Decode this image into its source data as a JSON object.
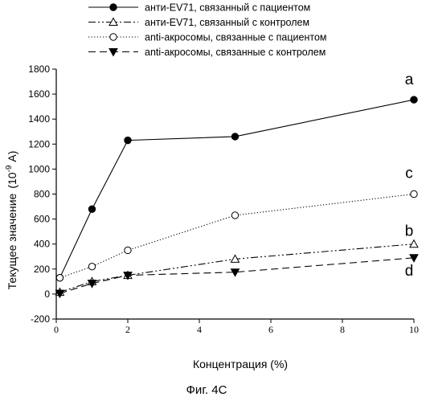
{
  "figure": {
    "caption": "Фиг. 4С"
  },
  "chart_data": {
    "type": "line",
    "xlabel": "Концентрация (%)",
    "ylabel": "Текущее значение",
    "ylabel_unit_prefix": "(10",
    "ylabel_unit_exp": "-9",
    "ylabel_unit_suffix": " А)",
    "xlim": [
      0,
      10
    ],
    "ylim": [
      -200,
      1800
    ],
    "x_ticks": [
      0,
      2,
      4,
      6,
      8,
      10
    ],
    "y_ticks": [
      -200,
      0,
      200,
      400,
      600,
      800,
      1000,
      1200,
      1400,
      1600,
      1800
    ],
    "grid": false,
    "legend_position": "top",
    "series": [
      {
        "name": "анти-EV71, связанный с пациентом",
        "label": "a",
        "marker": "filled-circle",
        "line": "solid",
        "x": [
          0.1,
          1,
          2,
          5,
          10
        ],
        "y": [
          130,
          680,
          1230,
          1260,
          1555
        ]
      },
      {
        "name": "анти-EV71, связанный с контролем",
        "label": "b",
        "marker": "open-triangle",
        "line": "dash-dot-dot",
        "x": [
          0.1,
          1,
          2,
          5,
          10
        ],
        "y": [
          15,
          100,
          150,
          280,
          400
        ]
      },
      {
        "name": "anti-акросомы, связанные с пациентом",
        "label": "c",
        "marker": "open-circle",
        "line": "dotted",
        "x": [
          0.1,
          1,
          2,
          5,
          10
        ],
        "y": [
          130,
          220,
          350,
          630,
          800
        ]
      },
      {
        "name": "anti-акросомы, связанные с контролем",
        "label": "d",
        "marker": "filled-triangle-down",
        "line": "dashed",
        "x": [
          0.1,
          1,
          2,
          5,
          10
        ],
        "y": [
          5,
          85,
          150,
          175,
          290
        ]
      }
    ]
  }
}
